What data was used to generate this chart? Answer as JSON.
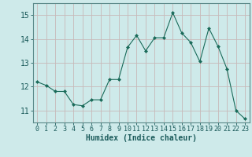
{
  "x": [
    0,
    1,
    2,
    3,
    4,
    5,
    6,
    7,
    8,
    9,
    10,
    11,
    12,
    13,
    14,
    15,
    16,
    17,
    18,
    19,
    20,
    21,
    22,
    23
  ],
  "y": [
    12.2,
    12.05,
    11.8,
    11.8,
    11.25,
    11.2,
    11.45,
    11.45,
    12.3,
    12.3,
    13.65,
    14.15,
    13.5,
    14.05,
    14.05,
    15.1,
    14.25,
    13.85,
    13.05,
    14.45,
    13.7,
    12.75,
    11.0,
    10.65
  ],
  "line_color": "#1a6b5a",
  "marker": "D",
  "marker_size": 2.0,
  "bg_color": "#ceeaea",
  "grid_color": "#b0d8d8",
  "xlabel": "Humidex (Indice chaleur)",
  "ylim": [
    10.5,
    15.5
  ],
  "xlim": [
    -0.5,
    23.5
  ],
  "yticks": [
    11,
    12,
    13,
    14,
    15
  ],
  "xticks": [
    0,
    1,
    2,
    3,
    4,
    5,
    6,
    7,
    8,
    9,
    10,
    11,
    12,
    13,
    14,
    15,
    16,
    17,
    18,
    19,
    20,
    21,
    22,
    23
  ],
  "tick_font_size": 6,
  "xlabel_font_size": 7
}
